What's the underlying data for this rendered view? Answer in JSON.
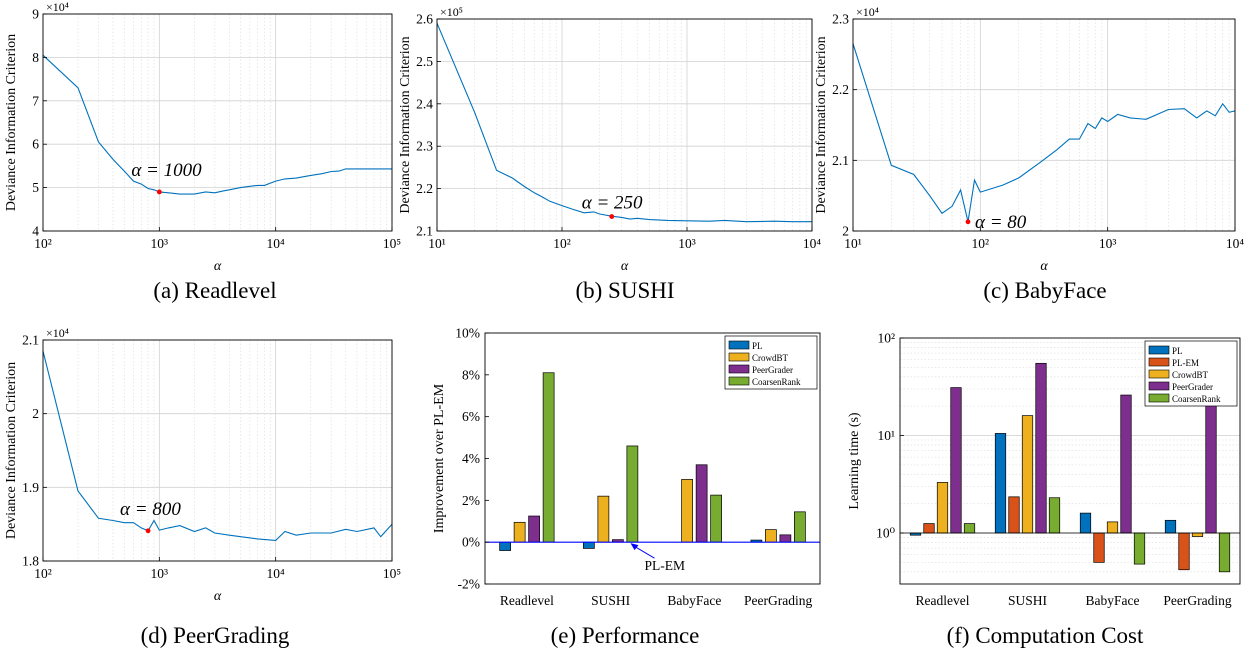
{
  "chart_data": [
    {
      "type": "line",
      "caption": "(a) Readlevel",
      "xlabel": "α",
      "ylabel": "Deviance Information Criterion",
      "xscale": "log",
      "xlim": [
        100,
        100000
      ],
      "ylim": [
        4,
        9
      ],
      "multiplier": "×10⁴",
      "xticks": [
        100,
        1000,
        10000,
        100000
      ],
      "xtick_labels": [
        "10²",
        "10³",
        "10⁴",
        "10⁵"
      ],
      "yticks": [
        4,
        5,
        6,
        7,
        8,
        9
      ],
      "ytick_labels": [
        "4",
        "5",
        "6",
        "7",
        "8",
        "9"
      ],
      "grid": true,
      "line_color": "#0072BD",
      "marker_color": "#ff0000",
      "x": [
        100,
        200,
        300,
        400,
        500,
        600,
        700,
        800,
        900,
        1000,
        1200,
        1500,
        2000,
        2500,
        3000,
        3500,
        4000,
        5000,
        6000,
        7000,
        8000,
        10000,
        12000,
        15000,
        20000,
        25000,
        30000,
        35000,
        40000,
        50000,
        70000,
        100000
      ],
      "y": [
        8.05,
        7.3,
        6.05,
        5.65,
        5.38,
        5.15,
        5.08,
        4.98,
        4.95,
        4.9,
        4.88,
        4.85,
        4.85,
        4.9,
        4.88,
        4.92,
        4.95,
        5.0,
        5.03,
        5.05,
        5.05,
        5.15,
        5.2,
        5.22,
        5.28,
        5.32,
        5.37,
        5.38,
        5.43,
        5.43,
        5.43,
        5.43
      ],
      "highlight": {
        "x": 1000,
        "y": 4.9,
        "label": "α = 1000"
      }
    },
    {
      "type": "line",
      "caption": "(b) SUSHI",
      "xlabel": "α",
      "ylabel": "Deviance Information Criterion",
      "xscale": "log",
      "xlim": [
        10,
        10000
      ],
      "ylim": [
        2.1,
        2.6
      ],
      "multiplier": "×10⁵",
      "xticks": [
        10,
        100,
        1000,
        10000
      ],
      "xtick_labels": [
        "10¹",
        "10²",
        "10³",
        "10⁴"
      ],
      "yticks": [
        2.1,
        2.2,
        2.3,
        2.4,
        2.5,
        2.6
      ],
      "ytick_labels": [
        "2.1",
        "2.2",
        "2.3",
        "2.4",
        "2.5",
        "2.6"
      ],
      "grid": true,
      "line_color": "#0072BD",
      "marker_color": "#ff0000",
      "x": [
        10,
        20,
        30,
        40,
        50,
        60,
        70,
        80,
        100,
        120,
        150,
        180,
        200,
        250,
        300,
        350,
        400,
        500,
        700,
        1000,
        1500,
        2000,
        3000,
        5000,
        7000,
        10000
      ],
      "y": [
        2.59,
        2.38,
        2.243,
        2.225,
        2.205,
        2.19,
        2.18,
        2.17,
        2.16,
        2.152,
        2.143,
        2.145,
        2.14,
        2.135,
        2.132,
        2.128,
        2.13,
        2.127,
        2.125,
        2.124,
        2.123,
        2.125,
        2.122,
        2.123,
        2.122,
        2.122
      ],
      "highlight": {
        "x": 250,
        "y": 2.134,
        "label": "α = 250"
      }
    },
    {
      "type": "line",
      "caption": "(c) BabyFace",
      "xlabel": "α",
      "ylabel": "Deviance Information Criterion",
      "xscale": "log",
      "xlim": [
        10,
        10000
      ],
      "ylim": [
        2.0,
        2.3
      ],
      "multiplier": "×10⁴",
      "xticks": [
        10,
        100,
        1000,
        10000
      ],
      "xtick_labels": [
        "10¹",
        "10²",
        "10³",
        "10⁴"
      ],
      "yticks": [
        2.0,
        2.1,
        2.2,
        2.3
      ],
      "ytick_labels": [
        "2",
        "2.1",
        "2.2",
        "2.3"
      ],
      "grid": true,
      "line_color": "#0072BD",
      "marker_color": "#ff0000",
      "x": [
        10,
        20,
        30,
        40,
        50,
        60,
        70,
        80,
        90,
        100,
        150,
        200,
        300,
        400,
        500,
        600,
        700,
        800,
        900,
        1000,
        1200,
        1500,
        2000,
        3000,
        4000,
        5000,
        6000,
        7000,
        8000,
        9000,
        10000
      ],
      "y": [
        2.265,
        2.093,
        2.08,
        2.05,
        2.025,
        2.035,
        2.058,
        2.013,
        2.072,
        2.055,
        2.065,
        2.075,
        2.098,
        2.115,
        2.13,
        2.13,
        2.152,
        2.145,
        2.16,
        2.155,
        2.165,
        2.16,
        2.158,
        2.172,
        2.173,
        2.16,
        2.17,
        2.163,
        2.18,
        2.168,
        2.17
      ],
      "highlight": {
        "x": 80,
        "y": 2.013,
        "label": "α = 80"
      }
    },
    {
      "type": "line",
      "caption": "(d) PeerGrading",
      "xlabel": "α",
      "ylabel": "Deviance Information Criterion",
      "xscale": "log",
      "xlim": [
        100,
        100000
      ],
      "ylim": [
        1.8,
        2.1
      ],
      "multiplier": "×10⁴",
      "xticks": [
        100,
        1000,
        10000,
        100000
      ],
      "xtick_labels": [
        "10²",
        "10³",
        "10⁴",
        "10⁵"
      ],
      "yticks": [
        1.8,
        1.9,
        2.0,
        2.1
      ],
      "ytick_labels": [
        "1.8",
        "1.9",
        "2",
        "2.1"
      ],
      "grid": true,
      "line_color": "#0072BD",
      "marker_color": "#ff0000",
      "x": [
        100,
        200,
        300,
        400,
        500,
        600,
        700,
        800,
        900,
        1000,
        1200,
        1500,
        2000,
        2500,
        3000,
        4000,
        5000,
        7000,
        10000,
        12000,
        15000,
        20000,
        30000,
        40000,
        50000,
        70000,
        80000,
        100000
      ],
      "y": [
        2.085,
        1.895,
        1.858,
        1.855,
        1.852,
        1.852,
        1.845,
        1.841,
        1.855,
        1.842,
        1.845,
        1.848,
        1.84,
        1.845,
        1.838,
        1.835,
        1.833,
        1.83,
        1.828,
        1.84,
        1.835,
        1.838,
        1.838,
        1.843,
        1.84,
        1.845,
        1.833,
        1.85
      ],
      "highlight": {
        "x": 800,
        "y": 1.841,
        "label": "α = 800"
      }
    },
    {
      "type": "bar",
      "caption": "(e) Performance",
      "ylabel": "Improvement over PL-EM",
      "categories": [
        "Readlevel",
        "SUSHI",
        "BabyFace",
        "PeerGrading"
      ],
      "ylim": [
        -2,
        10
      ],
      "yticks": [
        -2,
        0,
        2,
        4,
        6,
        8,
        10
      ],
      "ytick_labels": [
        "-2%",
        "0%",
        "2%",
        "4%",
        "6%",
        "8%",
        "10%"
      ],
      "series": [
        {
          "name": "PL",
          "color": "#0072BD",
          "values": [
            -0.4,
            -0.3,
            0.0,
            0.1
          ]
        },
        {
          "name": "CrowdBT",
          "color": "#EDB120",
          "values": [
            0.95,
            2.2,
            3.0,
            0.6
          ]
        },
        {
          "name": "PeerGrader",
          "color": "#7E2F8E",
          "values": [
            1.25,
            0.12,
            3.7,
            0.35
          ]
        },
        {
          "name": "CoarsenRank",
          "color": "#77AC30",
          "values": [
            8.1,
            4.6,
            2.25,
            1.45
          ]
        }
      ],
      "baseline_color": "#0000ff",
      "annotation": {
        "label": "PL-EM",
        "color": "#0000ff"
      },
      "legend": "top-right",
      "grid": false
    },
    {
      "type": "bar",
      "caption": "(f) Computation Cost",
      "ylabel": "Learning time (s)",
      "yscale": "log",
      "categories": [
        "Readlevel",
        "SUSHI",
        "BabyFace",
        "PeerGrading"
      ],
      "ylim": [
        0.3,
        100
      ],
      "yticks": [
        1,
        10,
        100
      ],
      "ytick_labels": [
        "10⁰",
        "10¹",
        "10²"
      ],
      "series": [
        {
          "name": "PL",
          "color": "#0072BD",
          "values": [
            0.95,
            10.5,
            1.6,
            1.35
          ]
        },
        {
          "name": "PL-EM",
          "color": "#D95319",
          "values": [
            1.25,
            2.35,
            0.5,
            0.42
          ]
        },
        {
          "name": "CrowdBT",
          "color": "#EDB120",
          "values": [
            3.3,
            16,
            1.3,
            0.92
          ]
        },
        {
          "name": "PeerGrader",
          "color": "#7E2F8E",
          "values": [
            31,
            55,
            26,
            23
          ]
        },
        {
          "name": "CoarsenRank",
          "color": "#77AC30",
          "values": [
            1.25,
            2.3,
            0.48,
            0.4
          ]
        }
      ],
      "legend": "top-right",
      "grid": true
    }
  ]
}
